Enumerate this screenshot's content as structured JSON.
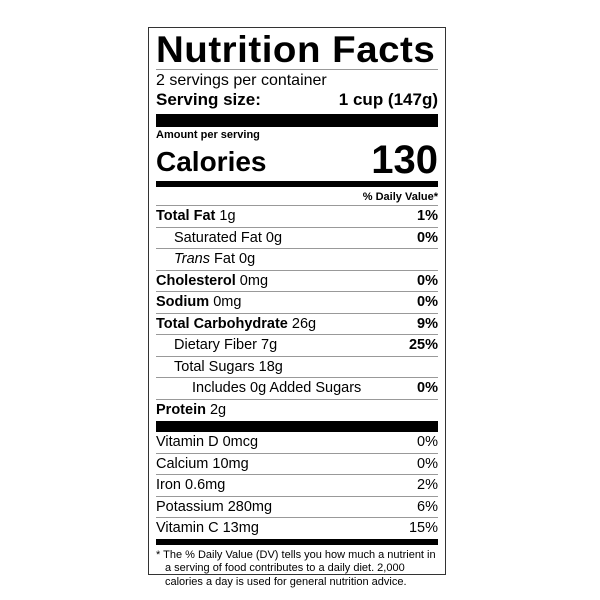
{
  "title": "Nutrition Facts",
  "servings_per_container": "2 servings per container",
  "serving_size_label": "Serving size:",
  "serving_size_value": "1 cup (147g)",
  "amount_per_serving": "Amount per serving",
  "calories_label": "Calories",
  "calories_value": "130",
  "daily_value_header": "% Daily Value*",
  "nutrients": [
    {
      "name": "Total Fat",
      "amount": "1g",
      "dv": "1%"
    },
    {
      "name": "Saturated Fat",
      "amount": "0g",
      "dv": "0%"
    },
    {
      "name": "Trans",
      "name2": "Fat",
      "amount": "0g",
      "dv": ""
    },
    {
      "name": "Cholesterol",
      "amount": "0mg",
      "dv": "0%"
    },
    {
      "name": "Sodium",
      "amount": "0mg",
      "dv": "0%"
    },
    {
      "name": "Total Carbohydrate",
      "amount": "26g",
      "dv": "9%"
    },
    {
      "name": "Dietary Fiber",
      "amount": "7g",
      "dv": "25%"
    },
    {
      "name": "Total Sugars",
      "amount": "18g",
      "dv": ""
    },
    {
      "name": "Includes 0g Added Sugars",
      "amount": "",
      "dv": "0%"
    },
    {
      "name": "Protein",
      "amount": "2g",
      "dv": ""
    }
  ],
  "vitamins": [
    {
      "name": "Vitamin D 0mcg",
      "dv": "0%"
    },
    {
      "name": "Calcium 10mg",
      "dv": "0%"
    },
    {
      "name": "Iron 0.6mg",
      "dv": "2%"
    },
    {
      "name": "Potassium 280mg",
      "dv": "6%"
    },
    {
      "name": "Vitamin C 13mg",
      "dv": "15%"
    }
  ],
  "footnote": "* The % Daily Value (DV) tells you how much a nutrient in a serving of food contributes to a daily diet. 2,000 calories a day is used for general nutrition advice."
}
